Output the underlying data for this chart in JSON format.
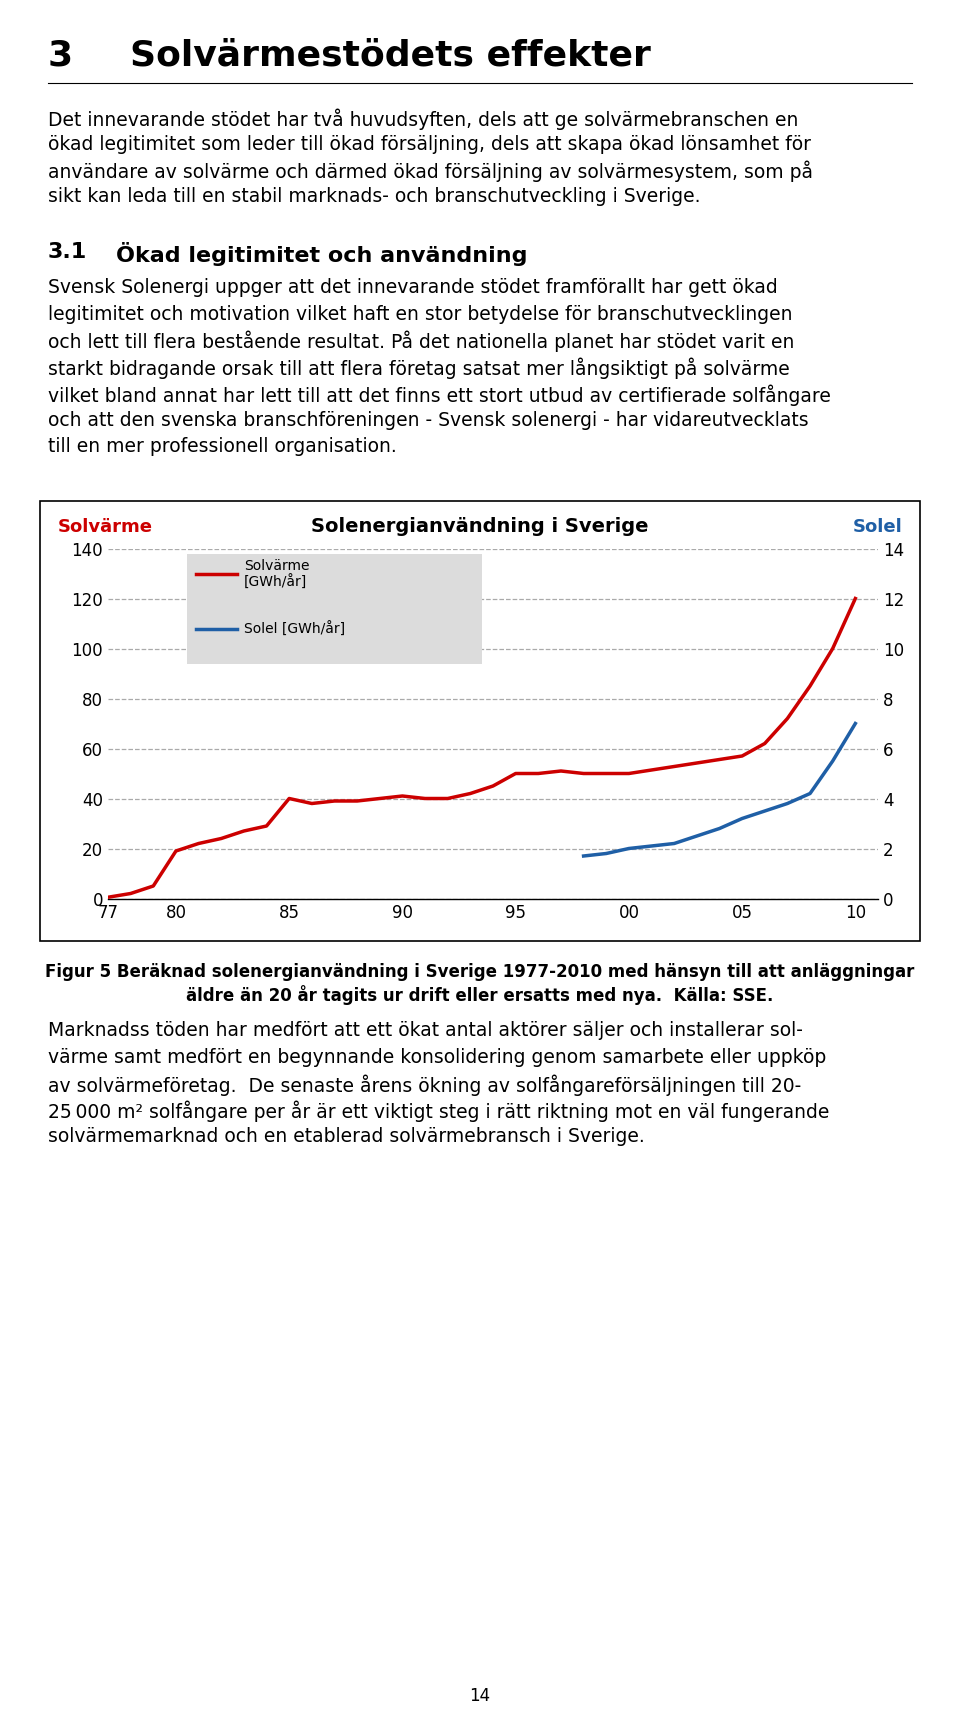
{
  "title_number": "3",
  "title_text": "Solvärmestödets effekter",
  "section_number": "3.1",
  "section_title": "Ökad legitimitet och användning",
  "para1_lines": [
    "Det innevarande stödet har två huvudsyften, dels att ge solvärmebranschen en",
    "ökad legitimitet som leder till ökad försäljning, dels att skapa ökad lönsamhet för",
    "användare av solvärme och därmed ökad försäljning av solvärmesystem, som på",
    "sikt kan leda till en stabil marknads- och branschutveckling i Sverige."
  ],
  "para2_lines": [
    "Svensk Solenergi uppger att det innevarande stödet framförallt har gett ökad",
    "legitimitet och motivation vilket haft en stor betydelse för branschutvecklingen",
    "och lett till flera bestående resultat. På det nationella planet har stödet varit en",
    "starkt bidragande orsak till att flera företag satsat mer långsiktigt på solvärme",
    "vilket bland annat har lett till att det finns ett stort utbud av certifierade solfångare",
    "och att den svenska branschföreningen - Svensk solenergi - har vidareutvecklats",
    "till en mer professionell organisation."
  ],
  "chart_title": "Solenergianvändning i Sverige",
  "left_axis_label": "Solvärme",
  "right_axis_label": "Solel",
  "x_ticks": [
    "77",
    "80",
    "85",
    "90",
    "95",
    "00",
    "05",
    "10"
  ],
  "y_left_ticks": [
    0,
    20,
    40,
    60,
    80,
    100,
    120,
    140
  ],
  "y_right_ticks": [
    0,
    2,
    4,
    6,
    8,
    10,
    12,
    14
  ],
  "solvarme_x": [
    1977,
    1978,
    1979,
    1980,
    1981,
    1982,
    1983,
    1984,
    1985,
    1986,
    1987,
    1988,
    1989,
    1990,
    1991,
    1992,
    1993,
    1994,
    1995,
    1996,
    1997,
    1998,
    2000,
    2005,
    2006,
    2007,
    2008,
    2009,
    2010
  ],
  "solvarme_y": [
    0.5,
    2,
    5,
    19,
    22,
    24,
    27,
    29,
    40,
    38,
    39,
    39,
    40,
    41,
    40,
    40,
    42,
    45,
    50,
    50,
    51,
    50,
    50,
    57,
    62,
    72,
    85,
    100,
    120
  ],
  "solel_x": [
    1998,
    1999,
    2000,
    2001,
    2002,
    2003,
    2004,
    2005,
    2006,
    2007,
    2008,
    2009,
    2010
  ],
  "solel_y": [
    1.7,
    1.8,
    2.0,
    2.1,
    2.2,
    2.5,
    2.8,
    3.2,
    3.5,
    3.8,
    4.2,
    5.5,
    7.0
  ],
  "solvarme_color": "#cc0000",
  "solel_color": "#1f5fa6",
  "grid_color": "#aaaaaa",
  "caption_line1": "Figur 5 Beräknad solenergianvändning i Sverige 1977-2010 med hänsyn till att anläggningar",
  "caption_line2": "äldre än 20 år tagits ur drift eller ersatts med nya.  Källa: SSE.",
  "para3_lines": [
    "Marknadss töden har medfört att ett ökat antal aktörer säljer och installerar sol-",
    "värme samt medfört en begynnande konsolidering genom samarbete eller uppköp",
    "av solvärmeföretag.  De senaste årens ökning av solfångareförsäljningen till 20-",
    "25 000 m² solfångare per år är ett viktigt steg i rätt riktning mot en väl fungerande",
    "solvärmemarknad och en etablerad solvärmebransch i Sverige."
  ],
  "page_number": "14",
  "background_color": "#ffffff",
  "text_color": "#000000",
  "left_label_color": "#cc0000",
  "right_label_color": "#1f5fa6"
}
